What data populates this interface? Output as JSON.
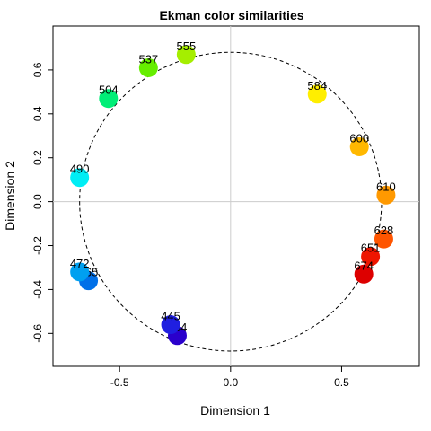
{
  "chart_data": {
    "type": "scatter",
    "title": "Ekman color similarities",
    "xlabel": "Dimension 1",
    "ylabel": "Dimension 2",
    "xlim": [
      -0.8,
      0.85
    ],
    "ylim": [
      -0.75,
      0.8
    ],
    "xticks": [
      "-0.5",
      "0.0",
      "0.5"
    ],
    "xtick_values": [
      -0.5,
      0.0,
      0.5
    ],
    "yticks": [
      "-0.6",
      "-0.4",
      "-0.2",
      "0.0",
      "0.2",
      "0.4",
      "0.6"
    ],
    "ytick_values": [
      -0.6,
      -0.4,
      -0.2,
      0.0,
      0.2,
      0.4,
      0.6
    ],
    "grid": false,
    "reference_lines": {
      "x": 0,
      "y": 0,
      "color": "#cccccc"
    },
    "circle": {
      "cx": 0,
      "cy": 0,
      "r": 0.68,
      "style": "dashed"
    },
    "points": [
      {
        "label": "434",
        "x": -0.24,
        "y": -0.61,
        "color": "#2a00cc"
      },
      {
        "label": "445",
        "x": -0.27,
        "y": -0.56,
        "color": "#1f1fe0"
      },
      {
        "label": "465",
        "x": -0.64,
        "y": -0.36,
        "color": "#0070e8"
      },
      {
        "label": "472",
        "x": -0.68,
        "y": -0.32,
        "color": "#00a0f0"
      },
      {
        "label": "490",
        "x": -0.68,
        "y": 0.11,
        "color": "#00eef5"
      },
      {
        "label": "504",
        "x": -0.55,
        "y": 0.47,
        "color": "#00ee77"
      },
      {
        "label": "537",
        "x": -0.37,
        "y": 0.61,
        "color": "#66ee00"
      },
      {
        "label": "555",
        "x": -0.2,
        "y": 0.67,
        "color": "#a5ee00"
      },
      {
        "label": "584",
        "x": 0.39,
        "y": 0.49,
        "color": "#ffee00"
      },
      {
        "label": "600",
        "x": 0.58,
        "y": 0.25,
        "color": "#ffb800"
      },
      {
        "label": "610",
        "x": 0.7,
        "y": 0.03,
        "color": "#ff9900"
      },
      {
        "label": "628",
        "x": 0.69,
        "y": -0.17,
        "color": "#ff5500"
      },
      {
        "label": "651",
        "x": 0.63,
        "y": -0.25,
        "color": "#ee1500"
      },
      {
        "label": "674",
        "x": 0.6,
        "y": -0.33,
        "color": "#dd0000"
      }
    ]
  }
}
